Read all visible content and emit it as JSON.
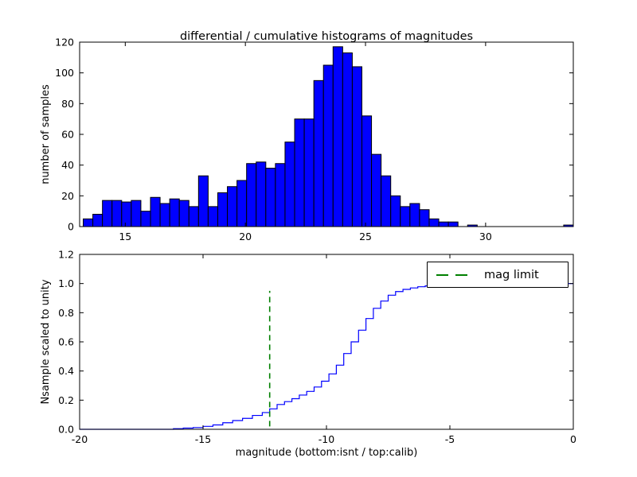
{
  "figure": {
    "background": "#ffffff"
  },
  "chart_data": [
    {
      "type": "bar",
      "title": "differential / cumulative histograms of magnitudes",
      "ylabel": "number of samples",
      "xlim": [
        13.1,
        33.65
      ],
      "ylim": [
        0,
        120
      ],
      "xticks": [
        15,
        20,
        25,
        30
      ],
      "xticklabels": [
        "15",
        "20",
        "25",
        "30"
      ],
      "yticks": [
        0,
        20,
        40,
        60,
        80,
        100,
        120
      ],
      "yticklabels": [
        "0",
        "20",
        "40",
        "60",
        "80",
        "100",
        "120"
      ],
      "grid": false,
      "bins_start": 13.25,
      "bin_width": 0.4,
      "values": [
        5,
        8,
        17,
        17,
        16,
        17,
        10,
        19,
        15,
        18,
        17,
        13,
        33,
        13,
        22,
        26,
        30,
        41,
        42,
        38,
        41,
        55,
        70,
        70,
        95,
        105,
        117,
        113,
        104,
        72,
        47,
        33,
        20,
        13,
        15,
        11,
        5,
        3,
        3,
        0,
        1,
        0,
        0,
        0,
        0,
        0,
        0,
        0,
        0,
        0,
        1
      ],
      "bar_color": "#0000ff",
      "bar_edge_color": "#000000"
    },
    {
      "type": "line",
      "step": true,
      "ylabel": "Nsample scaled to unity",
      "xlabel": "magnitude (bottom:isnt / top:calib)",
      "xlim": [
        -20,
        0
      ],
      "ylim": [
        0,
        1.2
      ],
      "xticks": [
        -20,
        -15,
        -10,
        -5,
        0
      ],
      "xticklabels": [
        "-20",
        "-15",
        "-10",
        "-5",
        "0"
      ],
      "yticks": [
        0,
        0.2,
        0.4,
        0.6,
        0.8,
        1.0,
        1.2
      ],
      "yticklabels": [
        "0.0",
        "0.2",
        "0.4",
        "0.6",
        "0.8",
        "1.0",
        "1.2"
      ],
      "grid": false,
      "line_color": "#0000ff",
      "step_points": [
        [
          -20,
          0
        ],
        [
          -16.6,
          0
        ],
        [
          -16.2,
          0.004
        ],
        [
          -15.8,
          0.008
        ],
        [
          -15.4,
          0.012
        ],
        [
          -15.0,
          0.02
        ],
        [
          -14.6,
          0.03
        ],
        [
          -14.2,
          0.045
        ],
        [
          -13.8,
          0.06
        ],
        [
          -13.4,
          0.075
        ],
        [
          -13.0,
          0.095
        ],
        [
          -12.6,
          0.115
        ],
        [
          -12.3,
          0.14
        ],
        [
          -12.0,
          0.17
        ],
        [
          -11.7,
          0.19
        ],
        [
          -11.4,
          0.21
        ],
        [
          -11.1,
          0.235
        ],
        [
          -10.8,
          0.26
        ],
        [
          -10.5,
          0.29
        ],
        [
          -10.2,
          0.33
        ],
        [
          -9.9,
          0.38
        ],
        [
          -9.6,
          0.44
        ],
        [
          -9.3,
          0.52
        ],
        [
          -9.0,
          0.6
        ],
        [
          -8.7,
          0.68
        ],
        [
          -8.4,
          0.76
        ],
        [
          -8.1,
          0.83
        ],
        [
          -7.8,
          0.88
        ],
        [
          -7.5,
          0.92
        ],
        [
          -7.2,
          0.945
        ],
        [
          -6.9,
          0.96
        ],
        [
          -6.6,
          0.97
        ],
        [
          -6.3,
          0.978
        ],
        [
          -6.0,
          0.984
        ],
        [
          -5.6,
          0.988
        ],
        [
          -5.2,
          0.991
        ],
        [
          -4.6,
          0.994
        ],
        [
          -4.0,
          0.996
        ],
        [
          -3.2,
          0.997
        ],
        [
          -2.4,
          0.998
        ],
        [
          -1.6,
          0.999
        ],
        [
          -0.4,
          1.0
        ],
        [
          0,
          1.0
        ]
      ],
      "mag_limit": {
        "x": -12.3,
        "y0": 0.02,
        "y1": 0.95,
        "color": "#008000"
      },
      "legend": {
        "label": "mag limit",
        "line_color": "#008000",
        "position": "upper right"
      }
    }
  ]
}
